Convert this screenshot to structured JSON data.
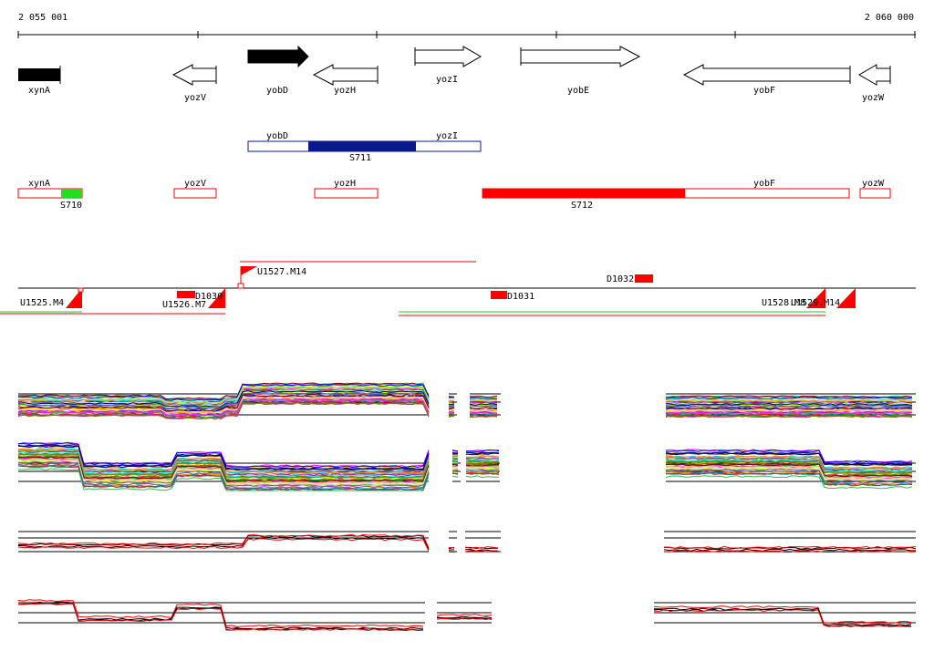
{
  "ruler": {
    "start_label": "2 055 001",
    "end_label": "2 060 000"
  },
  "genes": [
    {
      "name": "xynA",
      "strand": "+",
      "filled": true
    },
    {
      "name": "yozV",
      "strand": "-",
      "filled": false
    },
    {
      "name": "yobD",
      "strand": "+",
      "filled": true
    },
    {
      "name": "yozH",
      "strand": "-",
      "filled": false
    },
    {
      "name": "yozI",
      "strand": "+",
      "filled": false
    },
    {
      "name": "yobE",
      "strand": "+",
      "filled": false
    },
    {
      "name": "yobF",
      "strand": "-",
      "filled": false
    },
    {
      "name": "yozW",
      "strand": "-",
      "filled": false
    }
  ],
  "segments": {
    "S711": {
      "label": "S711",
      "genes": [
        "yobD",
        "yozI"
      ],
      "color": "#0a1a8c"
    },
    "S710": {
      "label": "S710",
      "color": "#22dd22"
    },
    "S712": {
      "label": "S712",
      "color": "#ff0000"
    },
    "row2_genes": [
      "xynA",
      "yozV",
      "yozH",
      "yobF",
      "yozW"
    ]
  },
  "features": {
    "U1527.M14": "U1527.M14",
    "U1525.M4": "U1525.M4",
    "U1526.M7": "U1526.M7",
    "D1030": "D1030",
    "D1031": "D1031",
    "D1032": "D1032",
    "U1528.M8": "U1528.M8",
    "U1529.M14": "U1529.M14"
  },
  "colors": {
    "feature": "#ff0000",
    "segment_outline": "#0a1a8c",
    "line_green": "#22cc22"
  }
}
